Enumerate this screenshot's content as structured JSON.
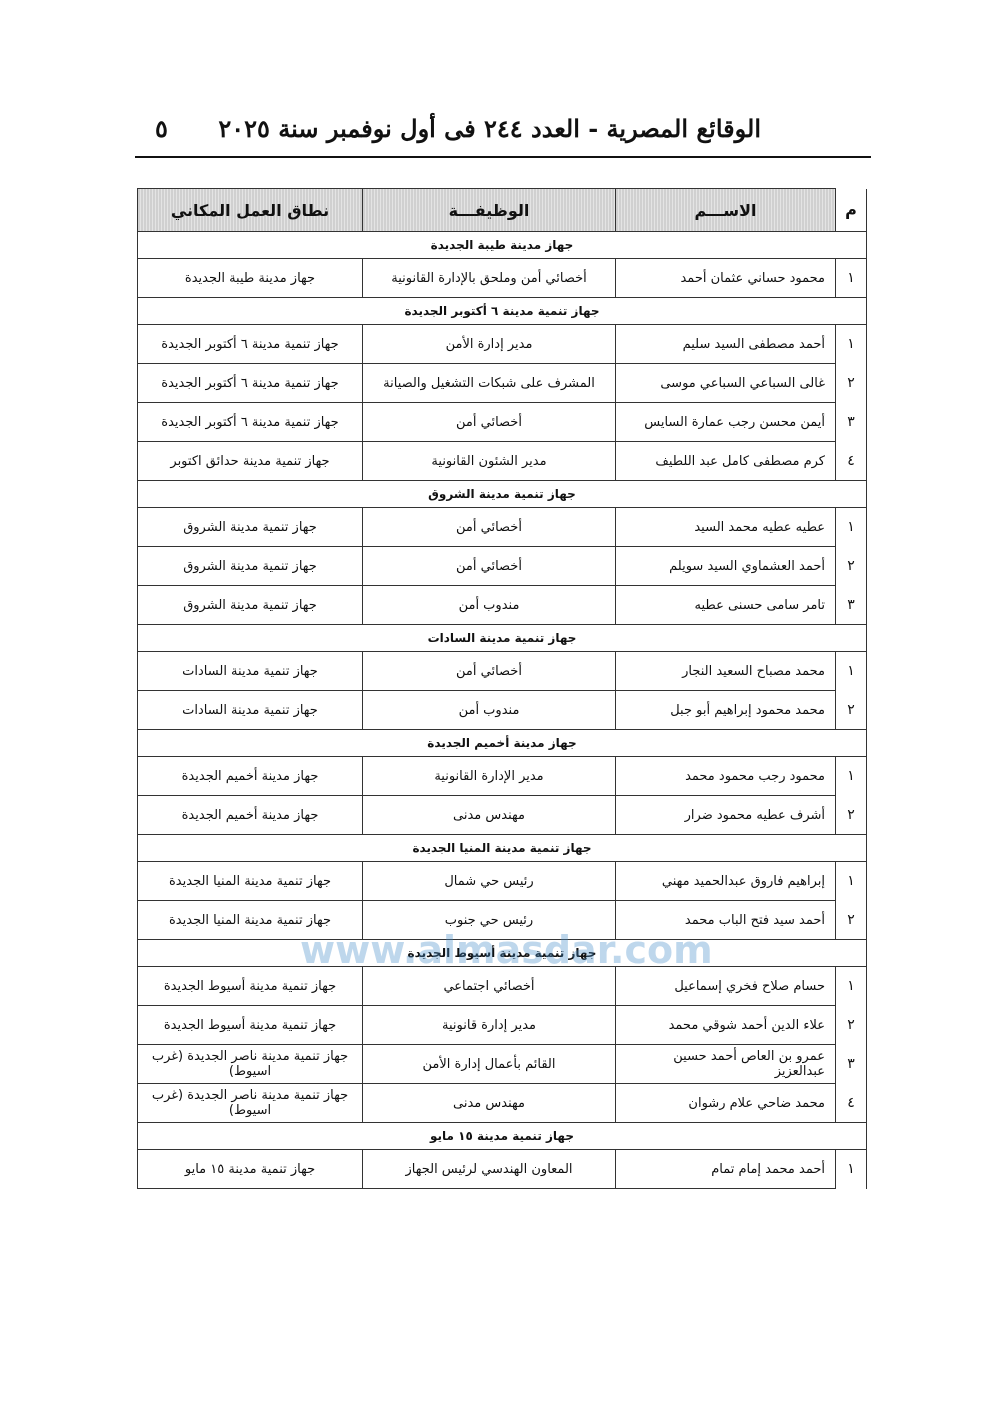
{
  "header": {
    "title": "الوقائع المصرية - العدد ٢٤٤ فى أول نوفمبر سنة ٢٠٢٥",
    "page_number": "٥"
  },
  "table": {
    "columns": [
      "م",
      "الاســـم",
      "الوظيفـــة",
      "نطاق العمل المكاني"
    ],
    "sections": [
      {
        "title": "جهاز مدينة طيبة الجديدة",
        "rows": [
          [
            "١",
            "محمود حساني عثمان أحمد",
            "أخصائي أمن وملحق بالإدارة القانونية",
            "جهاز مدينة طيبة الجديدة"
          ]
        ]
      },
      {
        "title": "جهاز تنمية مدينة ٦ أكتوبر الجديدة",
        "rows": [
          [
            "١",
            "أحمد مصطفى السيد سليم",
            "مدير إدارة الأمن",
            "جهاز تنمية مدينة ٦ أكتوبر الجديدة"
          ],
          [
            "٢",
            "غالى السباعي السباعي موسى",
            "المشرف على شبكات التشغيل والصيانة",
            "جهاز تنمية مدينة ٦ أكتوبر الجديدة"
          ],
          [
            "٣",
            "أيمن محسن رجب عمارة السايس",
            "أخصائي أمن",
            "جهاز تنمية مدينة ٦ أكتوبر الجديدة"
          ],
          [
            "٤",
            "كرم مصطفى كامل عبد اللطيف",
            "مدير الشئون القانونية",
            "جهاز تنمية مدينة حدائق اكتوبر"
          ]
        ]
      },
      {
        "title": "جهاز تنمية مدينة الشروق",
        "rows": [
          [
            "١",
            "عطيه عطيه محمد السيد",
            "أخصائي أمن",
            "جهاز تنمية مدينة الشروق"
          ],
          [
            "٢",
            "أحمد العشماوي السيد سويلم",
            "أخصائي أمن",
            "جهاز تنمية مدينة الشروق"
          ],
          [
            "٣",
            "تامر سامى حسنى عطيه",
            "مندوب أمن",
            "جهاز تنمية مدينة الشروق"
          ]
        ]
      },
      {
        "title": "جهاز تنمية مدينة السادات",
        "rows": [
          [
            "١",
            "محمد مصباح السعيد النجار",
            "أخصائي أمن",
            "جهاز تنمية مدينة السادات"
          ],
          [
            "٢",
            "محمد محمود إبراهيم أبو جبل",
            "مندوب أمن",
            "جهاز تنمية مدينة السادات"
          ]
        ]
      },
      {
        "title": "جهاز مدينة أخميم الجديدة",
        "rows": [
          [
            "١",
            "محمود رجب محمود محمد",
            "مدير الإدارة القانونية",
            "جهاز مدينة أخميم الجديدة"
          ],
          [
            "٢",
            "أشرف عطيه محمود ضرار",
            "مهندس مدنى",
            "جهاز مدينة أخميم الجديدة"
          ]
        ]
      },
      {
        "title": "جهاز تنمية مدينة المنيا الجديدة",
        "rows": [
          [
            "١",
            "إبراهيم فاروق عبدالحميد مهني",
            "رئيس حي شمال",
            "جهاز تنمية مدينة المنيا الجديدة"
          ],
          [
            "٢",
            "أحمد سيد فتح الباب محمد",
            "رئيس حي جنوب",
            "جهاز تنمية مدينة المنيا الجديدة"
          ]
        ]
      },
      {
        "title": "جهاز تنمية مدينة أسيوط الجديدة",
        "rows": [
          [
            "١",
            "حسام صلاح فخري إسماعيل",
            "أخصائي اجتماعي",
            "جهاز تنمية مدينة أسيوط الجديدة"
          ],
          [
            "٢",
            "علاء الدين أحمد شوقي محمد",
            "مدير إدارة قانونية",
            "جهاز تنمية مدينة أسيوط الجديدة"
          ],
          [
            "٣",
            "عمرو بن العاص أحمد حسين عبدالعزيز",
            "القائم بأعمال إدارة الأمن",
            "جهاز تنمية مدينة ناصر الجديدة (غرب اسيوط)"
          ],
          [
            "٤",
            "محمد ضاحي علام رشوان",
            "مهندس مدنى",
            "جهاز تنمية مدينة ناصر الجديدة (غرب اسيوط)"
          ]
        ]
      },
      {
        "title": "جهاز تنمية مدينة ١٥ مايو",
        "rows": [
          [
            "١",
            "أحمد محمد إمام تمام",
            "المعاون الهندسي لرئيس الجهاز",
            "جهاز تنمية مدينة ١٥ مايو"
          ]
        ]
      }
    ]
  },
  "watermark": "www.almasdar.com"
}
